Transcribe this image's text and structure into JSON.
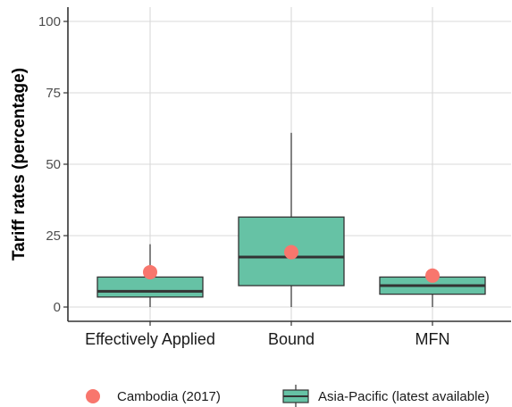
{
  "chart_data": {
    "type": "boxplot",
    "categories": [
      "Effectively Applied",
      "Bound",
      "MFN"
    ],
    "ylabel": "Tariff rates (percentage)",
    "xlabel": "",
    "ylim": [
      -5,
      105
    ],
    "yticks": [
      0,
      25,
      50,
      75,
      100
    ],
    "grid": true,
    "legend_placement": "bottom",
    "series": [
      {
        "name": "Asia-Pacific (latest available)",
        "kind": "box",
        "color": "#66c2a5",
        "boxes": [
          {
            "category": "Effectively Applied",
            "min": 0,
            "q1": 3.5,
            "median": 5.5,
            "q3": 10.5,
            "max": 22
          },
          {
            "category": "Bound",
            "min": 0,
            "q1": 7.5,
            "median": 17.5,
            "q3": 31.5,
            "max": 61
          },
          {
            "category": "MFN",
            "min": 0,
            "q1": 4.5,
            "median": 7.5,
            "q3": 10.5,
            "max": 10.5
          }
        ]
      },
      {
        "name": "Cambodia (2017)",
        "kind": "point",
        "color": "#f8766d",
        "values": [
          12.2,
          19.2,
          11
        ]
      }
    ]
  }
}
